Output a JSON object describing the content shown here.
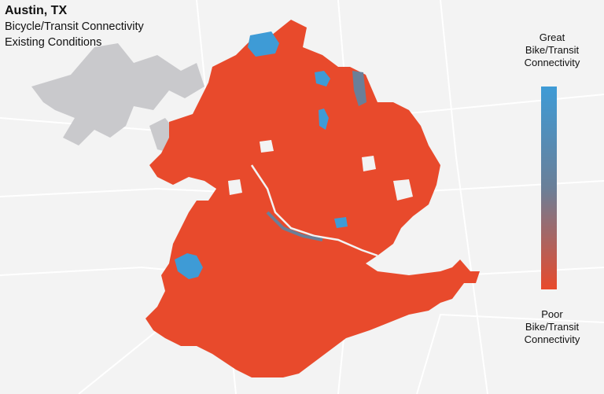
{
  "title": "Austin, TX",
  "subtitle_1": "Bicycle/Transit Connectivity",
  "subtitle_2": "Existing Conditions",
  "legend": {
    "top_line_1": "Great",
    "top_line_2": "Bike/Transit",
    "top_line_3": "Connectivity",
    "bottom_line_1": "Poor",
    "bottom_line_2": "Bike/Transit",
    "bottom_line_3": "Connectivity",
    "colors": {
      "great": "#3e9bd6",
      "mid": "#6a7f98",
      "poor": "#e84a2c"
    }
  },
  "map": {
    "basemap_color": "#f3f3f3",
    "water_color": "#c9c9cc",
    "road_color": "#ffffff",
    "area_fill_poor": "#e84a2c",
    "area_fill_great": "#3e9bd6"
  }
}
